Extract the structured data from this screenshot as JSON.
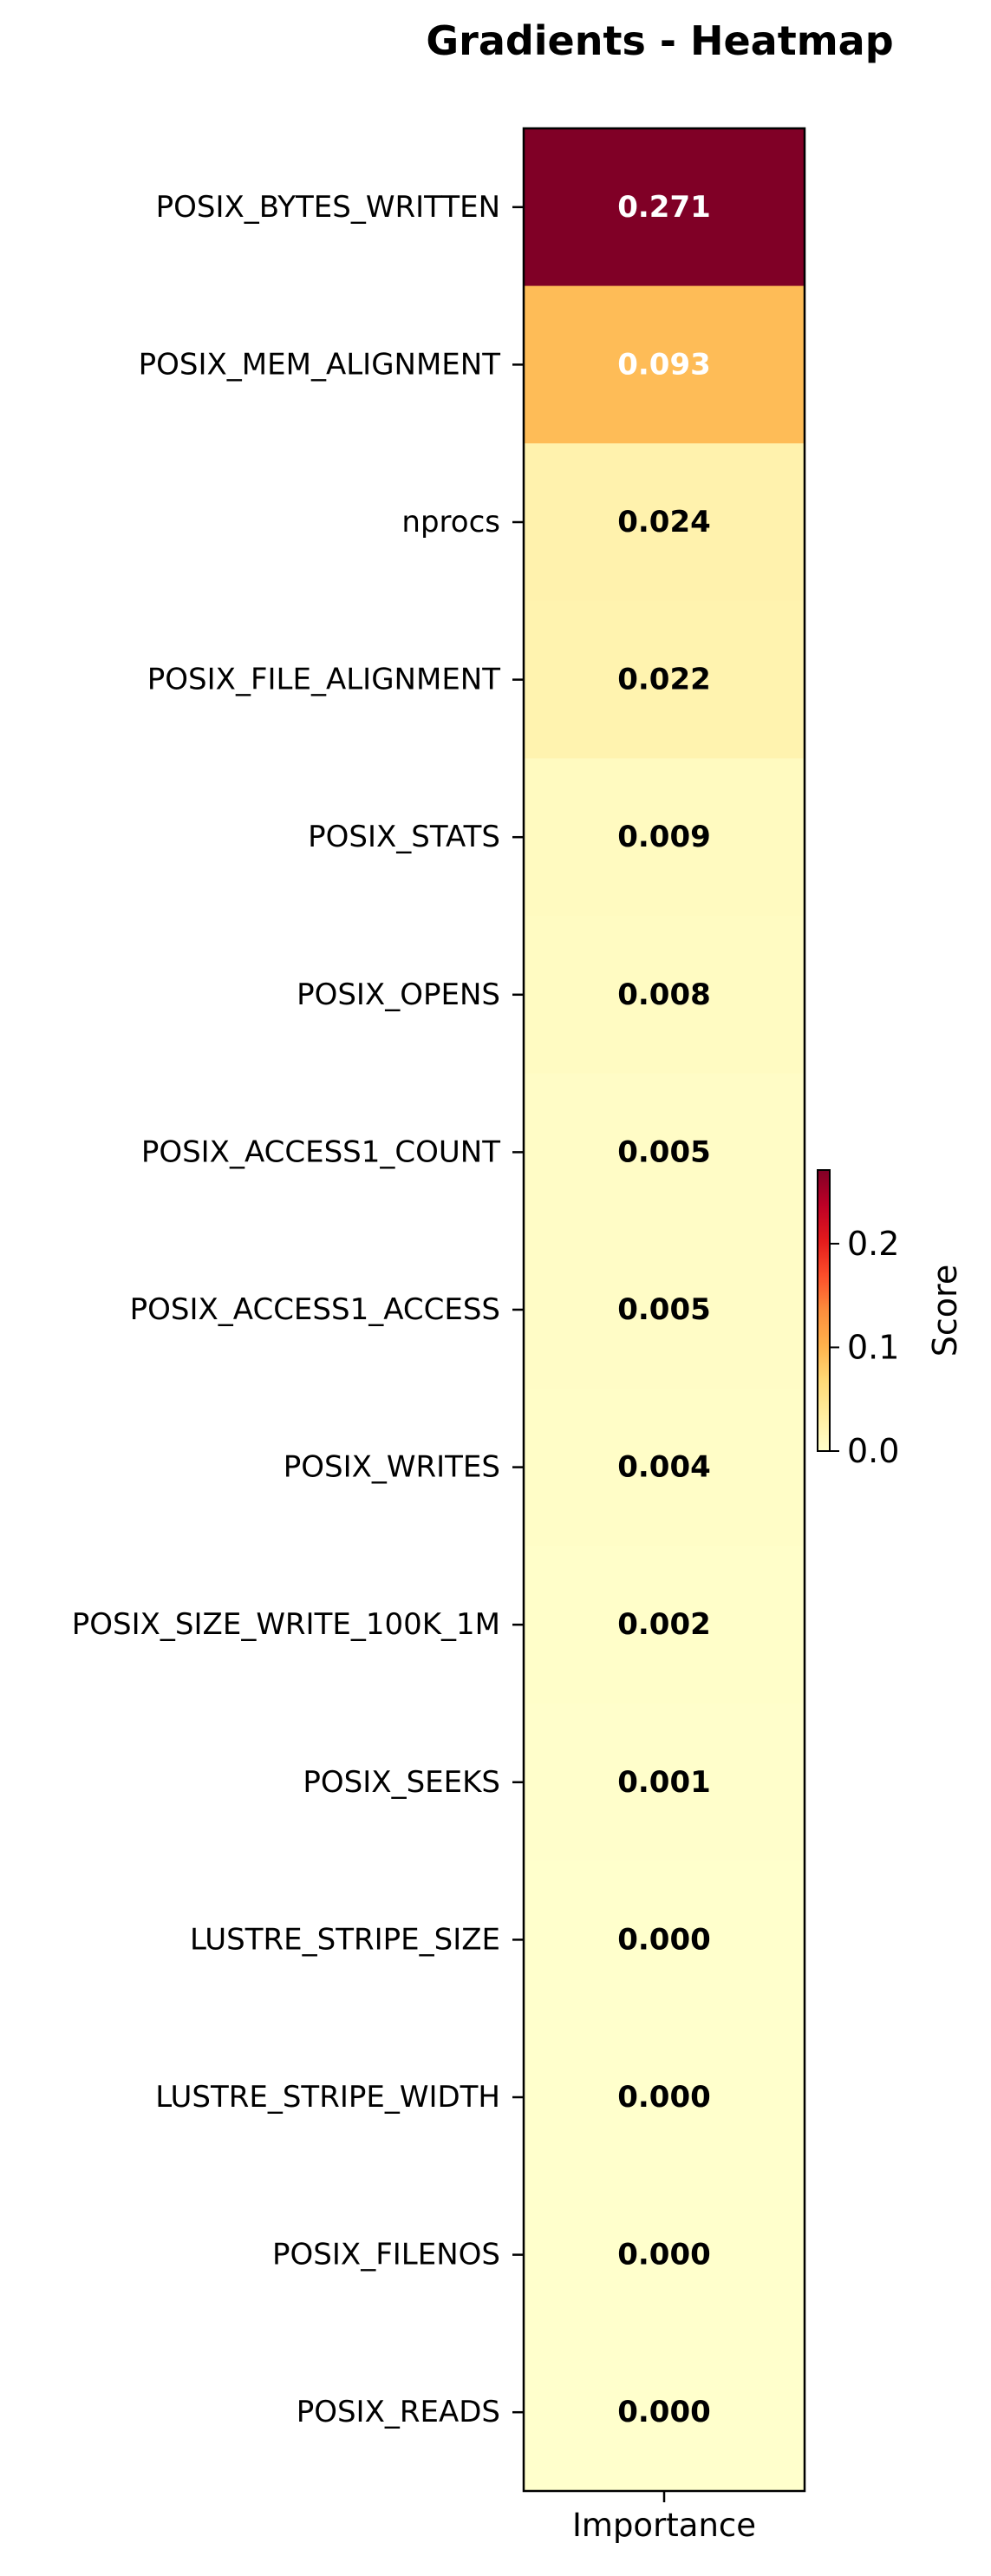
{
  "chart_data": {
    "type": "heatmap",
    "title": "Gradients - Heatmap",
    "columns": [
      "Importance"
    ],
    "rows": [
      "POSIX_BYTES_WRITTEN",
      "POSIX_MEM_ALIGNMENT",
      "nprocs",
      "POSIX_FILE_ALIGNMENT",
      "POSIX_STATS",
      "POSIX_OPENS",
      "POSIX_ACCESS1_COUNT",
      "POSIX_ACCESS1_ACCESS",
      "POSIX_WRITES",
      "POSIX_SIZE_WRITE_100K_1M",
      "POSIX_SEEKS",
      "LUSTRE_STRIPE_SIZE",
      "LUSTRE_STRIPE_WIDTH",
      "POSIX_FILENOS",
      "POSIX_READS"
    ],
    "values": [
      0.271,
      0.093,
      0.024,
      0.022,
      0.009,
      0.008,
      0.005,
      0.005,
      0.004,
      0.002,
      0.001,
      0.0,
      0.0,
      0.0,
      0.0
    ],
    "value_labels": [
      "0.271",
      "0.093",
      "0.024",
      "0.022",
      "0.009",
      "0.008",
      "0.005",
      "0.005",
      "0.004",
      "0.002",
      "0.001",
      "0.000",
      "0.000",
      "0.000",
      "0.000"
    ],
    "colormap": "YlOrRd",
    "vmin": 0.0,
    "vmax": 0.271,
    "colorbar": {
      "label": "Score",
      "ticks": [
        0.0,
        0.1,
        0.2
      ],
      "tick_labels": [
        "0.0",
        "0.1",
        "0.2"
      ]
    },
    "grid": false,
    "legend": "none"
  }
}
